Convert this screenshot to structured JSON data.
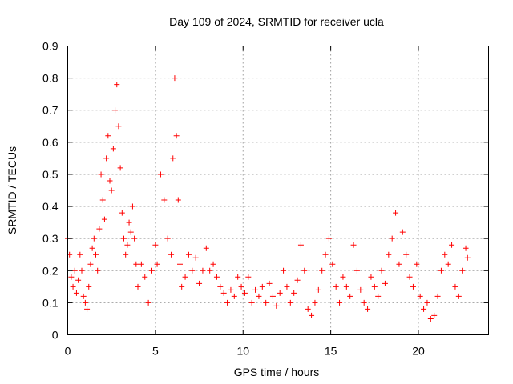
{
  "chart_data": {
    "type": "scatter",
    "title": "Day 109 of 2024, SRMTID for receiver ucla",
    "xlabel": "GPS time / hours",
    "ylabel": "SRMTID / TECUs",
    "xlim": [
      0,
      24
    ],
    "ylim": [
      0,
      0.9
    ],
    "xticks": [
      0,
      5,
      10,
      15,
      20
    ],
    "xtick_labels": [
      "0",
      "5",
      "10",
      "15",
      "20"
    ],
    "yticks": [
      0,
      0.1,
      0.2,
      0.3,
      0.4,
      0.5,
      0.6,
      0.7,
      0.8,
      0.9
    ],
    "ytick_labels": [
      "0",
      "0.1",
      "0.2",
      "0.3",
      "0.4",
      "0.5",
      "0.6",
      "0.7",
      "0.8",
      "0.9"
    ],
    "grid": true,
    "marker": "+",
    "colors": {
      "marker": "#ff0000",
      "grid": "#a0a0a0",
      "axis": "#000000"
    },
    "series": [
      {
        "name": "ucla",
        "points": [
          [
            0.0,
            0.3
          ],
          [
            0.1,
            0.25
          ],
          [
            0.2,
            0.18
          ],
          [
            0.3,
            0.15
          ],
          [
            0.4,
            0.2
          ],
          [
            0.5,
            0.13
          ],
          [
            0.6,
            0.17
          ],
          [
            0.7,
            0.25
          ],
          [
            0.8,
            0.2
          ],
          [
            0.9,
            0.12
          ],
          [
            1.0,
            0.1
          ],
          [
            1.1,
            0.08
          ],
          [
            1.2,
            0.15
          ],
          [
            1.3,
            0.22
          ],
          [
            1.4,
            0.27
          ],
          [
            1.5,
            0.3
          ],
          [
            1.6,
            0.25
          ],
          [
            1.7,
            0.2
          ],
          [
            1.8,
            0.33
          ],
          [
            1.9,
            0.5
          ],
          [
            2.0,
            0.42
          ],
          [
            2.1,
            0.36
          ],
          [
            2.2,
            0.55
          ],
          [
            2.3,
            0.62
          ],
          [
            2.4,
            0.48
          ],
          [
            2.5,
            0.45
          ],
          [
            2.6,
            0.58
          ],
          [
            2.7,
            0.7
          ],
          [
            2.8,
            0.78
          ],
          [
            2.9,
            0.65
          ],
          [
            3.0,
            0.52
          ],
          [
            3.1,
            0.38
          ],
          [
            3.2,
            0.3
          ],
          [
            3.3,
            0.25
          ],
          [
            3.4,
            0.28
          ],
          [
            3.5,
            0.35
          ],
          [
            3.6,
            0.32
          ],
          [
            3.7,
            0.4
          ],
          [
            3.8,
            0.3
          ],
          [
            3.9,
            0.22
          ],
          [
            4.0,
            0.15
          ],
          [
            4.2,
            0.22
          ],
          [
            4.4,
            0.18
          ],
          [
            4.6,
            0.1
          ],
          [
            4.8,
            0.2
          ],
          [
            5.0,
            0.28
          ],
          [
            5.1,
            0.22
          ],
          [
            5.3,
            0.5
          ],
          [
            5.5,
            0.42
          ],
          [
            5.7,
            0.3
          ],
          [
            5.9,
            0.25
          ],
          [
            6.0,
            0.55
          ],
          [
            6.1,
            0.8
          ],
          [
            6.2,
            0.62
          ],
          [
            6.3,
            0.42
          ],
          [
            6.4,
            0.22
          ],
          [
            6.5,
            0.15
          ],
          [
            6.7,
            0.18
          ],
          [
            6.9,
            0.25
          ],
          [
            7.1,
            0.2
          ],
          [
            7.3,
            0.24
          ],
          [
            7.5,
            0.16
          ],
          [
            7.7,
            0.2
          ],
          [
            7.9,
            0.27
          ],
          [
            8.1,
            0.2
          ],
          [
            8.3,
            0.22
          ],
          [
            8.5,
            0.18
          ],
          [
            8.7,
            0.15
          ],
          [
            8.9,
            0.13
          ],
          [
            9.1,
            0.1
          ],
          [
            9.3,
            0.14
          ],
          [
            9.5,
            0.12
          ],
          [
            9.7,
            0.18
          ],
          [
            9.9,
            0.15
          ],
          [
            10.1,
            0.13
          ],
          [
            10.3,
            0.18
          ],
          [
            10.5,
            0.1
          ],
          [
            10.7,
            0.14
          ],
          [
            10.9,
            0.12
          ],
          [
            11.1,
            0.15
          ],
          [
            11.3,
            0.1
          ],
          [
            11.5,
            0.16
          ],
          [
            11.7,
            0.12
          ],
          [
            11.9,
            0.09
          ],
          [
            12.1,
            0.13
          ],
          [
            12.3,
            0.2
          ],
          [
            12.5,
            0.15
          ],
          [
            12.7,
            0.1
          ],
          [
            12.9,
            0.13
          ],
          [
            13.1,
            0.17
          ],
          [
            13.3,
            0.28
          ],
          [
            13.5,
            0.2
          ],
          [
            13.7,
            0.08
          ],
          [
            13.9,
            0.06
          ],
          [
            14.1,
            0.1
          ],
          [
            14.3,
            0.14
          ],
          [
            14.5,
            0.2
          ],
          [
            14.7,
            0.25
          ],
          [
            14.9,
            0.3
          ],
          [
            15.1,
            0.22
          ],
          [
            15.3,
            0.15
          ],
          [
            15.5,
            0.1
          ],
          [
            15.7,
            0.18
          ],
          [
            15.9,
            0.15
          ],
          [
            16.1,
            0.12
          ],
          [
            16.3,
            0.28
          ],
          [
            16.5,
            0.2
          ],
          [
            16.7,
            0.14
          ],
          [
            16.9,
            0.1
          ],
          [
            17.1,
            0.08
          ],
          [
            17.3,
            0.18
          ],
          [
            17.5,
            0.15
          ],
          [
            17.7,
            0.12
          ],
          [
            17.9,
            0.2
          ],
          [
            18.1,
            0.16
          ],
          [
            18.3,
            0.25
          ],
          [
            18.5,
            0.3
          ],
          [
            18.7,
            0.38
          ],
          [
            18.9,
            0.22
          ],
          [
            19.1,
            0.32
          ],
          [
            19.3,
            0.25
          ],
          [
            19.5,
            0.18
          ],
          [
            19.7,
            0.15
          ],
          [
            19.9,
            0.22
          ],
          [
            20.1,
            0.12
          ],
          [
            20.3,
            0.08
          ],
          [
            20.5,
            0.1
          ],
          [
            20.7,
            0.05
          ],
          [
            20.9,
            0.06
          ],
          [
            21.1,
            0.12
          ],
          [
            21.3,
            0.2
          ],
          [
            21.5,
            0.25
          ],
          [
            21.7,
            0.22
          ],
          [
            21.9,
            0.28
          ],
          [
            22.1,
            0.15
          ],
          [
            22.3,
            0.12
          ],
          [
            22.5,
            0.2
          ],
          [
            22.7,
            0.27
          ],
          [
            22.8,
            0.24
          ]
        ]
      }
    ]
  }
}
